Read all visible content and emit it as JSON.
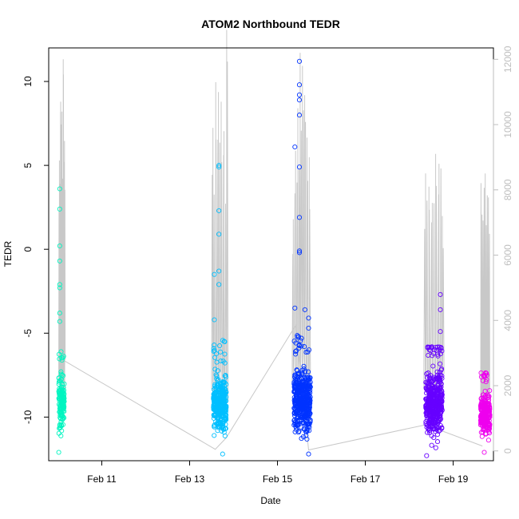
{
  "chart_data": {
    "type": "scatter",
    "title": "ATOM2 Northbound TEDR",
    "xlabel": "Date",
    "ylabel": "TEDR",
    "x_range": [
      "2024-02-09T19:00",
      "2024-02-19T22:00"
    ],
    "x_ticks": [
      {
        "date": "2024-02-11",
        "label": "Feb 11"
      },
      {
        "date": "2024-02-13",
        "label": "Feb 13"
      },
      {
        "date": "2024-02-15",
        "label": "Feb 15"
      },
      {
        "date": "2024-02-17",
        "label": "Feb 17"
      },
      {
        "date": "2024-02-19",
        "label": "Feb 19"
      }
    ],
    "ylim": [
      -12.6,
      12.0
    ],
    "y_ticks": [
      10,
      5,
      0,
      -5,
      -10
    ],
    "y2lim": [
      -300,
      12350
    ],
    "y2_ticks": [
      0,
      2000,
      4000,
      6000,
      8000,
      10000,
      12000
    ],
    "y2_color": "#bebebe",
    "grid": false,
    "legend": "none",
    "series": [
      {
        "color": "#00f5c0",
        "band": {
          "start": "2024-02-10T00:30",
          "end": "2024-02-10T03:30",
          "low": -11.4,
          "high": -6.8
        },
        "spread_high": -5.9,
        "outliers": [
          {
            "x": "2024-02-10T01:00",
            "y": 3.6
          },
          {
            "x": "2024-02-10T01:00",
            "y": 2.4
          },
          {
            "x": "2024-02-10T01:00",
            "y": 0.2
          },
          {
            "x": "2024-02-10T01:00",
            "y": -0.7
          },
          {
            "x": "2024-02-10T01:00",
            "y": -2.1
          },
          {
            "x": "2024-02-10T01:00",
            "y": -2.3
          },
          {
            "x": "2024-02-10T01:00",
            "y": -3.8
          },
          {
            "x": "2024-02-10T01:00",
            "y": -4.3
          },
          {
            "x": "2024-02-10T00:30",
            "y": -12.1
          }
        ]
      },
      {
        "color": "#00bfff",
        "band": {
          "start": "2024-02-13T13:00",
          "end": "2024-02-13T20:00",
          "low": -11.7,
          "high": -6.8
        },
        "spread_high": -5.3,
        "outliers": [
          {
            "x": "2024-02-13T16:00",
            "y": 5.0
          },
          {
            "x": "2024-02-13T16:00",
            "y": 4.9
          },
          {
            "x": "2024-02-13T16:00",
            "y": 2.3
          },
          {
            "x": "2024-02-13T16:00",
            "y": 0.9
          },
          {
            "x": "2024-02-13T16:00",
            "y": -1.3
          },
          {
            "x": "2024-02-13T16:00",
            "y": -2.1
          },
          {
            "x": "2024-02-13T13:30",
            "y": -1.5
          },
          {
            "x": "2024-02-13T13:30",
            "y": -4.2
          },
          {
            "x": "2024-02-13T18:00",
            "y": -12.2
          }
        ]
      },
      {
        "color": "#0033ff",
        "band": {
          "start": "2024-02-15T09:00",
          "end": "2024-02-15T18:00",
          "low": -11.7,
          "high": -6.3
        },
        "spread_high": -5.1,
        "outliers": [
          {
            "x": "2024-02-15T12:00",
            "y": 11.2
          },
          {
            "x": "2024-02-15T12:00",
            "y": 9.8
          },
          {
            "x": "2024-02-15T12:00",
            "y": 9.2
          },
          {
            "x": "2024-02-15T12:00",
            "y": 8.9
          },
          {
            "x": "2024-02-15T12:00",
            "y": 8.0
          },
          {
            "x": "2024-02-15T09:30",
            "y": 6.1
          },
          {
            "x": "2024-02-15T12:00",
            "y": 4.9
          },
          {
            "x": "2024-02-15T12:00",
            "y": 1.9
          },
          {
            "x": "2024-02-15T12:00",
            "y": -0.1
          },
          {
            "x": "2024-02-15T12:00",
            "y": -0.2
          },
          {
            "x": "2024-02-15T09:30",
            "y": -3.5
          },
          {
            "x": "2024-02-15T15:00",
            "y": -3.6
          },
          {
            "x": "2024-02-15T17:00",
            "y": -4.1
          },
          {
            "x": "2024-02-15T17:00",
            "y": -4.7
          },
          {
            "x": "2024-02-15T17:00",
            "y": -12.2
          }
        ]
      },
      {
        "color": "#6600ff",
        "band": {
          "start": "2024-02-18T09:00",
          "end": "2024-02-18T18:00",
          "low": -11.8,
          "high": -6.4
        },
        "spread_high": -5.8,
        "outliers": [
          {
            "x": "2024-02-18T17:00",
            "y": -2.7
          },
          {
            "x": "2024-02-18T17:00",
            "y": -3.6
          },
          {
            "x": "2024-02-18T17:00",
            "y": -4.9
          },
          {
            "x": "2024-02-18T09:30",
            "y": -12.3
          }
        ]
      },
      {
        "color": "#ee00ee",
        "band": {
          "start": "2024-02-19T15:00",
          "end": "2024-02-19T20:00",
          "low": -11.6,
          "high": -8.0
        },
        "spread_high": -7.3,
        "outliers": [
          {
            "x": "2024-02-19T17:00",
            "y": -7.5
          },
          {
            "x": "2024-02-19T17:00",
            "y": -12.1
          }
        ]
      }
    ],
    "secondary_series": {
      "color": "#c8c8c8",
      "axis": "right",
      "connector": [
        {
          "x": "2024-02-10T03:00",
          "y": 2780
        },
        {
          "x": "2024-02-13T14:00",
          "y": 50
        },
        {
          "x": "2024-02-13T20:00",
          "y": 400
        },
        {
          "x": "2024-02-15T10:00",
          "y": 3850
        },
        {
          "x": "2024-02-15T17:00",
          "y": 30
        },
        {
          "x": "2024-02-18T09:00",
          "y": 800
        },
        {
          "x": "2024-02-19T16:00",
          "y": 150
        }
      ],
      "spike_clusters": [
        {
          "start": "2024-02-10T00:30",
          "end": "2024-02-10T04:00",
          "peaks": [
            8900,
            10700,
            10400,
            12000,
            9500
          ],
          "base": 2100
        },
        {
          "start": "2024-02-13T12:00",
          "end": "2024-02-13T21:00",
          "peaks": [
            9900,
            11300,
            11000,
            10700,
            9800,
            12900
          ],
          "base": 1900
        },
        {
          "start": "2024-02-15T08:00",
          "end": "2024-02-15T18:00",
          "peaks": [
            7100,
            9200,
            10500,
            12200,
            11800,
            10900,
            9600,
            9000
          ],
          "base": 2300
        },
        {
          "start": "2024-02-18T08:00",
          "end": "2024-02-18T19:00",
          "peaks": [
            8500,
            8100,
            7600,
            9100,
            8800,
            7200
          ],
          "base": 1900
        },
        {
          "start": "2024-02-19T15:00",
          "end": "2024-02-19T20:00",
          "peaks": [
            8500
          ],
          "base": 1500
        }
      ]
    }
  }
}
